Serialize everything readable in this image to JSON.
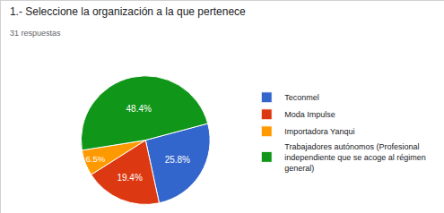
{
  "chart_data": {
    "type": "pie",
    "title": "1.- Seleccione la organización a la que pertenece",
    "subtitle": "31 respuestas",
    "categories": [
      "Teconmel",
      "Moda Impulse",
      "Importadora Yanqui",
      "Trabajadores autónomos (Profesional independiente que se acoge al régimen general)"
    ],
    "values": [
      25.8,
      19.4,
      6.5,
      48.4
    ],
    "value_labels": [
      "25.8%",
      "19.4%",
      "6.5%",
      "48.4%"
    ],
    "colors": [
      "#3366cc",
      "#dc3912",
      "#ff9900",
      "#109618"
    ],
    "data_labels": true,
    "legend": "right"
  }
}
